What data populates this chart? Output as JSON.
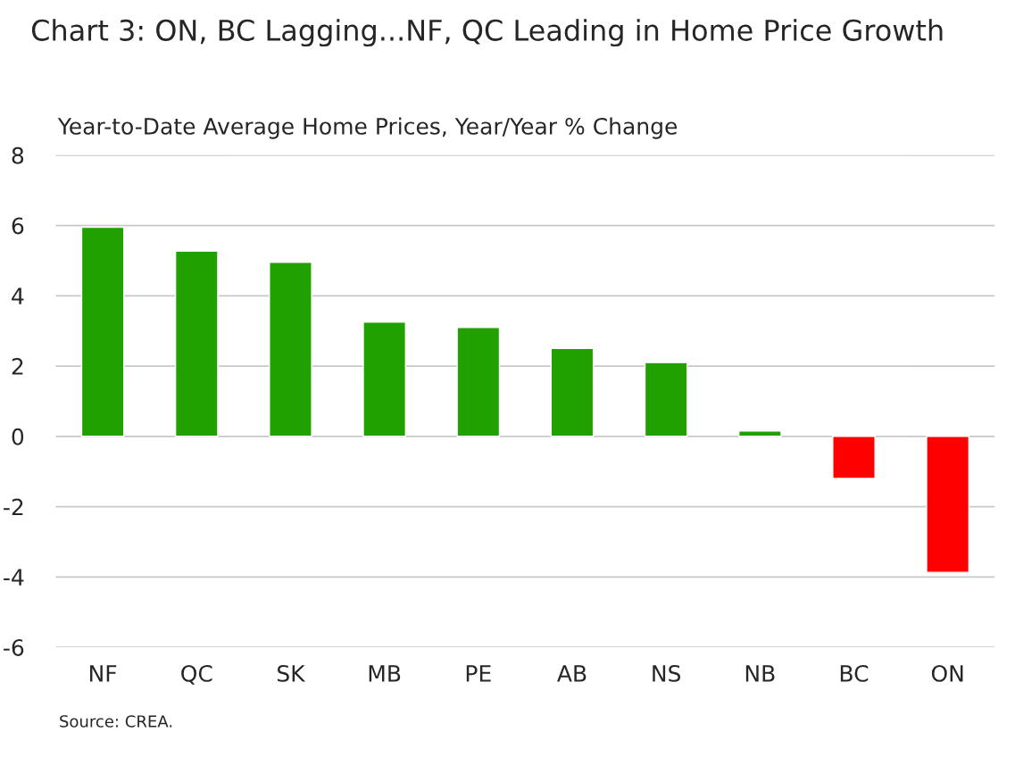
{
  "chart_data": {
    "type": "bar",
    "title": "Chart 3: ON, BC Lagging...NF, QC Leading in Home Price Growth",
    "subtitle": "Year-to-Date Average Home Prices, Year/Year % Change",
    "categories": [
      "NF",
      "QC",
      "SK",
      "MB",
      "PE",
      "AB",
      "NS",
      "NB",
      "BC",
      "ON"
    ],
    "values": [
      5.95,
      5.27,
      4.95,
      3.25,
      3.1,
      2.5,
      2.1,
      0.15,
      -1.2,
      -3.87
    ],
    "colors": [
      "#21a100",
      "#21a100",
      "#21a100",
      "#21a100",
      "#21a100",
      "#21a100",
      "#21a100",
      "#21a100",
      "#ff0000",
      "#ff0000"
    ],
    "ylim": [
      -6,
      8
    ],
    "yticks": [
      -6,
      -4,
      -2,
      0,
      2,
      4,
      6,
      8
    ],
    "grid": "y",
    "legend": false,
    "annotations": [
      "Source: CREA."
    ]
  }
}
